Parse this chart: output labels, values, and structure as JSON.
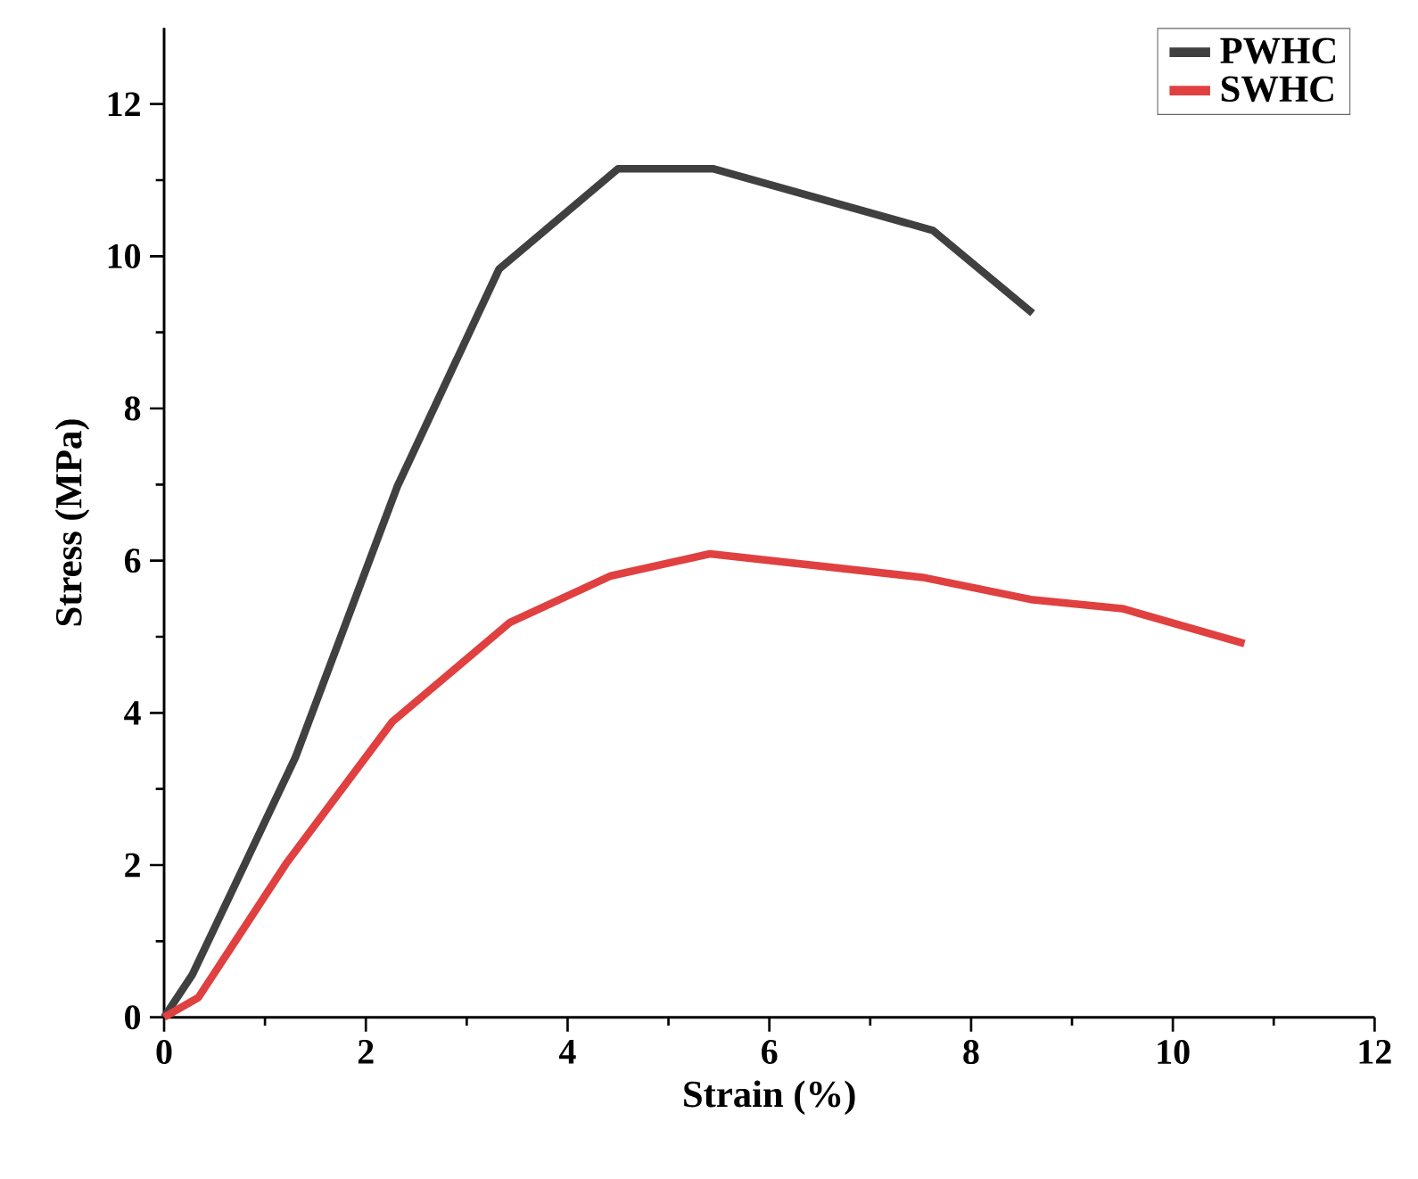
{
  "chart_data": {
    "type": "line",
    "xlabel": "Strain (%)",
    "ylabel": "Stress (MPa)",
    "xlim": [
      0,
      12
    ],
    "ylim": [
      0,
      13
    ],
    "xticks": [
      0,
      2,
      4,
      6,
      8,
      10,
      12
    ],
    "yticks": [
      0,
      2,
      4,
      6,
      8,
      10,
      12
    ],
    "legend": "top right",
    "grid": false,
    "marker": "none",
    "line_style": "solid",
    "series": [
      {
        "name": "PWHC",
        "color": "#404040",
        "x": [
          0,
          0.28,
          1.3,
          2.31,
          3.32,
          4.5,
          5.44,
          7.62,
          8.61
        ],
        "values": [
          0,
          0.56,
          3.41,
          6.97,
          9.83,
          11.15,
          11.15,
          10.34,
          9.25
        ]
      },
      {
        "name": "SWHC",
        "color": "#e04040",
        "x": [
          0,
          0.34,
          1.21,
          2.26,
          3.43,
          4.43,
          5.41,
          7.52,
          8.59,
          9.5,
          10.71
        ],
        "values": [
          0,
          0.26,
          2.02,
          3.88,
          5.19,
          5.8,
          6.09,
          5.78,
          5.49,
          5.37,
          4.91
        ]
      }
    ]
  }
}
